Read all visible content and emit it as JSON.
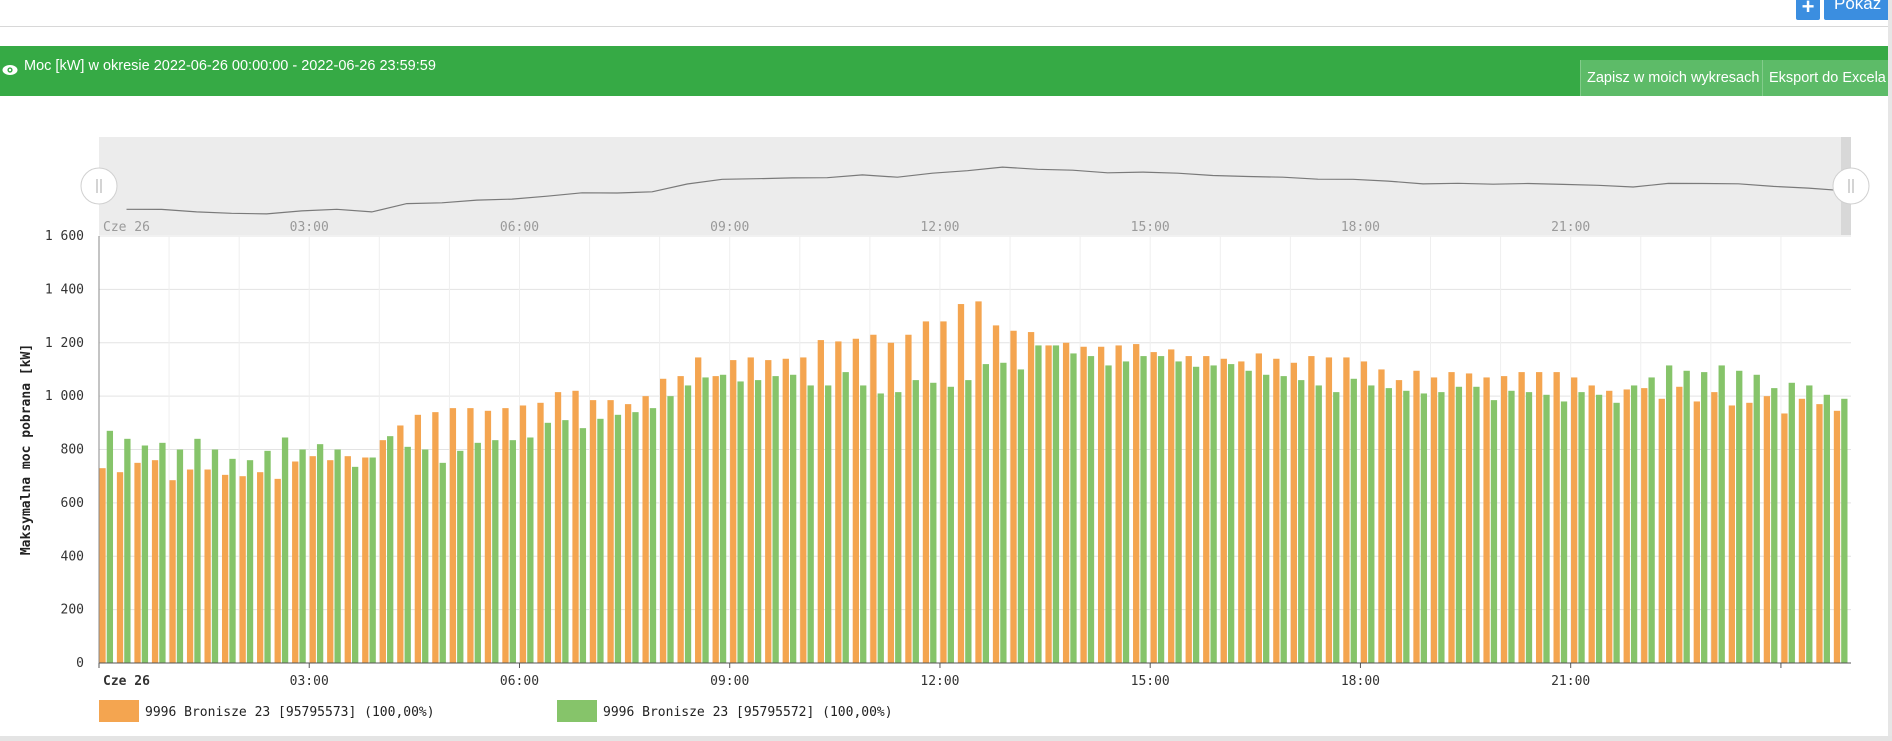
{
  "top_bar": {
    "show_label": "Pokaż",
    "plus_icon": "plus-icon"
  },
  "panel": {
    "title": "Moc [kW] w okresie 2022-06-26 00:00:00 - 2022-06-26 23:59:59",
    "save_button": "Zapisz w moich wykresach",
    "export_button": "Eksport do Excela",
    "eye_icon": "eye-icon",
    "header_color": "#36aa45"
  },
  "chart_data": {
    "type": "bar",
    "ylabel": "Maksymalna moc pobrana [kW]",
    "ylim": [
      0,
      1600
    ],
    "yticks": [
      "0",
      "200",
      "400",
      "600",
      "800",
      "1 000",
      "1 200",
      "1 400",
      "1 600"
    ],
    "xticks": [
      "Cze 26",
      "03:00",
      "06:00",
      "09:00",
      "12:00",
      "15:00",
      "18:00",
      "21:00"
    ],
    "navigator_xticks": [
      "Cze 26",
      "03:00",
      "06:00",
      "09:00",
      "12:00",
      "15:00",
      "18:00",
      "21:00"
    ],
    "interval": "15 min",
    "grid": true,
    "legend_position": "bottom-left",
    "series": [
      {
        "name": "9996 Bronisze 23 [95795573] (100,00%)",
        "color": "#f4a550",
        "values": [
          730,
          715,
          750,
          760,
          685,
          725,
          725,
          705,
          700,
          715,
          690,
          755,
          775,
          760,
          775,
          770,
          835,
          890,
          930,
          940,
          955,
          955,
          945,
          955,
          965,
          975,
          1015,
          1020,
          985,
          985,
          970,
          1000,
          1065,
          1075,
          1145,
          1075,
          1135,
          1145,
          1135,
          1140,
          1145,
          1210,
          1205,
          1215,
          1230,
          1200,
          1230,
          1280,
          1280,
          1345,
          1355,
          1265,
          1245,
          1240,
          1190,
          1200,
          1185,
          1185,
          1190,
          1195,
          1165,
          1175,
          1150,
          1150,
          1140,
          1130,
          1160,
          1140,
          1125,
          1150,
          1145,
          1145,
          1130,
          1100,
          1060,
          1095,
          1070,
          1090,
          1085,
          1070,
          1075,
          1090,
          1090,
          1090,
          1070,
          1040,
          1020,
          1025,
          1030,
          990,
          1035,
          980,
          1015,
          965,
          975,
          1000,
          935,
          990,
          970,
          945
        ]
      },
      {
        "name": "9996 Bronisze 23 [95795572] (100,00%)",
        "color": "#86c46a",
        "values": [
          870,
          840,
          815,
          825,
          800,
          840,
          800,
          765,
          760,
          795,
          845,
          800,
          820,
          800,
          735,
          770,
          850,
          810,
          800,
          750,
          795,
          825,
          835,
          835,
          845,
          900,
          910,
          880,
          915,
          930,
          940,
          955,
          1000,
          1040,
          1070,
          1080,
          1055,
          1060,
          1075,
          1080,
          1040,
          1040,
          1090,
          1040,
          1010,
          1015,
          1060,
          1050,
          1035,
          1060,
          1120,
          1125,
          1100,
          1190,
          1190,
          1160,
          1150,
          1115,
          1130,
          1150,
          1150,
          1130,
          1110,
          1115,
          1120,
          1095,
          1080,
          1075,
          1060,
          1040,
          1015,
          1065,
          1040,
          1030,
          1020,
          1010,
          1015,
          1035,
          1035,
          985,
          1020,
          1015,
          1005,
          980,
          1015,
          1005,
          975,
          1040,
          1070,
          1115,
          1095,
          1090,
          1115,
          1095,
          1080,
          1030,
          1050,
          1040,
          1005,
          990
        ]
      }
    ]
  }
}
